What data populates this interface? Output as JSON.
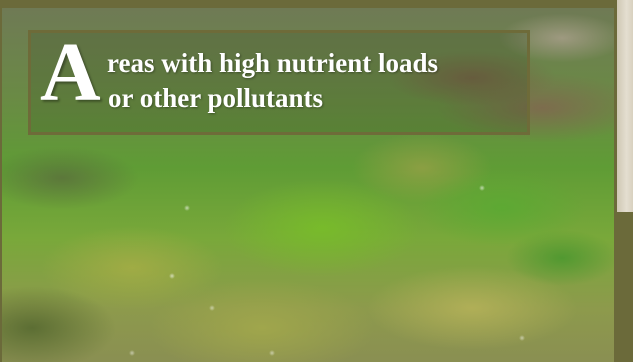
{
  "slide": {
    "title": {
      "drop_cap": "A",
      "line1": "reas with high nutrient loads",
      "line2": "or other pollutants"
    }
  }
}
